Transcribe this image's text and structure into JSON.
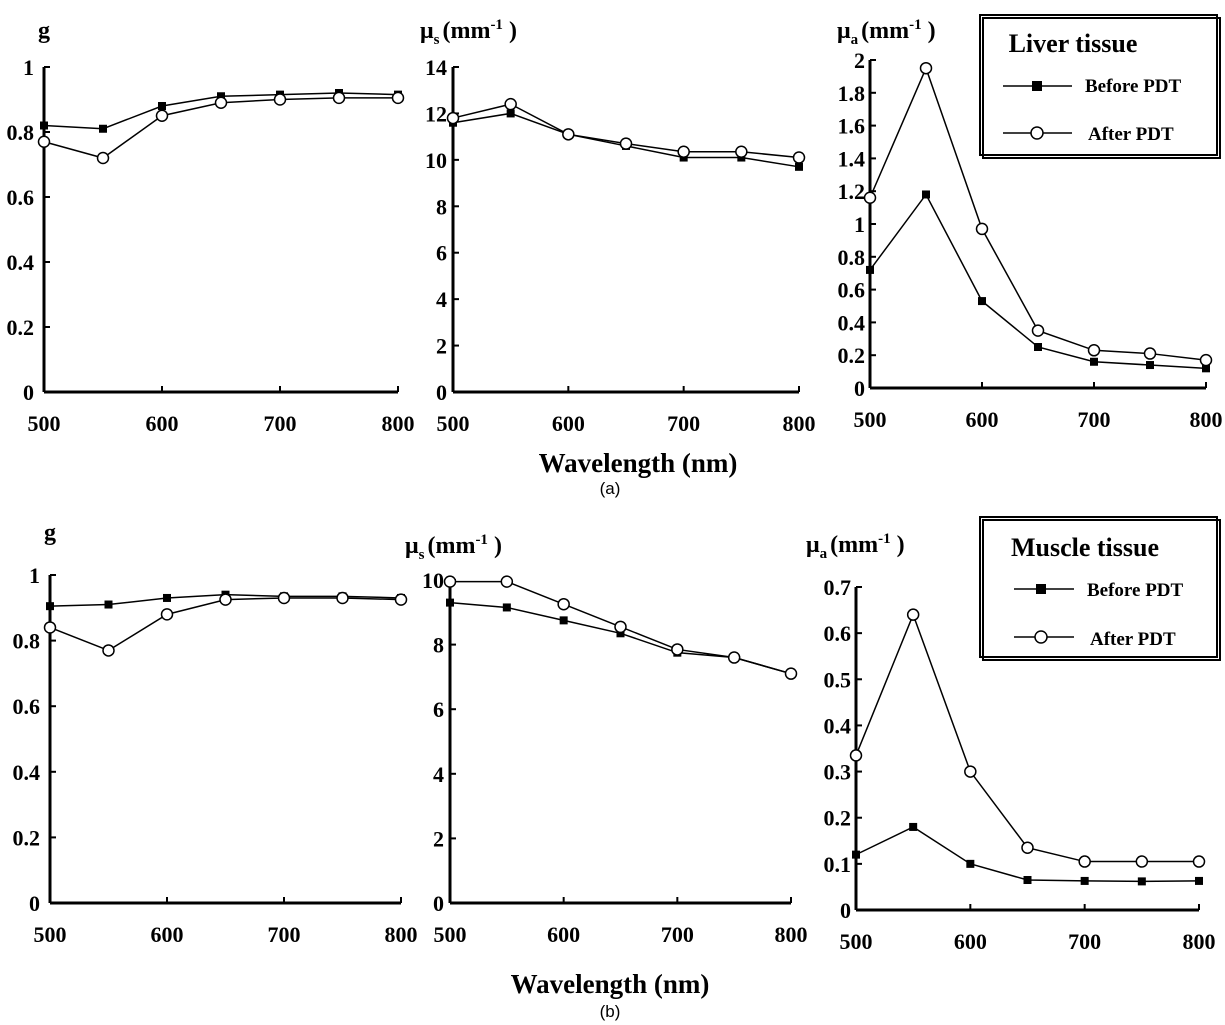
{
  "chart_data": [
    {
      "type": "line",
      "panel": "(a)",
      "tissue": "Liver tissue",
      "ylabel": "g",
      "ylim": [
        0,
        1
      ],
      "yticks": [
        "0",
        "0.2",
        "0.4",
        "0.6",
        "0.8",
        "1"
      ],
      "xlim": [
        500,
        800
      ],
      "xticks": [
        "500",
        "600",
        "700",
        "800"
      ],
      "x": [
        500,
        550,
        600,
        650,
        700,
        750,
        800
      ],
      "series": [
        {
          "name": "Before PDT",
          "marker": "filled-square",
          "values": [
            0.82,
            0.81,
            0.88,
            0.91,
            0.915,
            0.92,
            0.915
          ]
        },
        {
          "name": "After PDT",
          "marker": "open-circle",
          "values": [
            0.77,
            0.72,
            0.85,
            0.89,
            0.9,
            0.905,
            0.905
          ]
        }
      ]
    },
    {
      "type": "line",
      "panel": "(a)",
      "tissue": "Liver tissue",
      "ylabel": {
        "main": "μ",
        "sub": "s",
        "unit": "(mm",
        "sup": "-1",
        "close": " )"
      },
      "ylim": [
        0,
        14
      ],
      "yticks": [
        "0",
        "2",
        "4",
        "6",
        "8",
        "10",
        "12",
        "14"
      ],
      "xlim": [
        500,
        800
      ],
      "xticks": [
        "500",
        "600",
        "700",
        "800"
      ],
      "x": [
        500,
        550,
        600,
        650,
        700,
        750,
        800
      ],
      "series": [
        {
          "name": "Before PDT",
          "marker": "filled-square",
          "values": [
            11.6,
            12.0,
            11.1,
            10.6,
            10.1,
            10.1,
            9.7
          ]
        },
        {
          "name": "After PDT",
          "marker": "open-circle",
          "values": [
            11.8,
            12.4,
            11.1,
            10.7,
            10.35,
            10.35,
            10.1
          ]
        }
      ]
    },
    {
      "type": "line",
      "panel": "(a)",
      "tissue": "Liver tissue",
      "ylabel": {
        "main": "μ",
        "sub": "a",
        "unit": "(mm",
        "sup": "-1",
        "close": " )"
      },
      "ylim": [
        0,
        2
      ],
      "yticks": [
        "0",
        "0.2",
        "0.4",
        "0.6",
        "0.8",
        "1",
        "1.2",
        "1.4",
        "1.6",
        "1.8",
        "2"
      ],
      "xlim": [
        500,
        800
      ],
      "xticks": [
        "500",
        "600",
        "700",
        "800"
      ],
      "x": [
        500,
        550,
        600,
        650,
        700,
        750,
        800
      ],
      "series": [
        {
          "name": "Before PDT",
          "marker": "filled-square",
          "values": [
            0.72,
            1.18,
            0.53,
            0.25,
            0.16,
            0.14,
            0.12
          ]
        },
        {
          "name": "After PDT",
          "marker": "open-circle",
          "values": [
            1.16,
            1.95,
            0.97,
            0.35,
            0.23,
            0.21,
            0.17
          ]
        }
      ]
    },
    {
      "type": "line",
      "panel": "(b)",
      "tissue": "Muscle tissue",
      "ylabel": "g",
      "ylim": [
        0,
        1
      ],
      "yticks": [
        "0",
        "0.2",
        "0.4",
        "0.6",
        "0.8",
        "1"
      ],
      "xlim": [
        500,
        800
      ],
      "xticks": [
        "500",
        "600",
        "700",
        "800"
      ],
      "x": [
        500,
        550,
        600,
        650,
        700,
        750,
        800
      ],
      "series": [
        {
          "name": "Before PDT",
          "marker": "filled-square",
          "values": [
            0.905,
            0.91,
            0.93,
            0.94,
            0.935,
            0.935,
            0.93
          ]
        },
        {
          "name": "After PDT",
          "marker": "open-circle",
          "values": [
            0.84,
            0.77,
            0.88,
            0.925,
            0.93,
            0.93,
            0.925
          ]
        }
      ]
    },
    {
      "type": "line",
      "panel": "(b)",
      "tissue": "Muscle tissue",
      "ylabel": {
        "main": "μ",
        "sub": "s",
        "unit": "(mm",
        "sup": "-1",
        "close": " )"
      },
      "ylim": [
        0,
        10
      ],
      "yticks": [
        "0",
        "2",
        "4",
        "6",
        "8",
        "10"
      ],
      "xlim": [
        500,
        800
      ],
      "xticks": [
        "500",
        "600",
        "700",
        "800"
      ],
      "x": [
        500,
        550,
        600,
        650,
        700,
        750,
        800
      ],
      "series": [
        {
          "name": "Before PDT",
          "marker": "filled-square",
          "values": [
            9.3,
            9.15,
            8.75,
            8.35,
            7.75,
            7.6,
            7.1
          ]
        },
        {
          "name": "After PDT",
          "marker": "open-circle",
          "values": [
            9.95,
            9.95,
            9.25,
            8.55,
            7.85,
            7.6,
            7.1
          ]
        }
      ]
    },
    {
      "type": "line",
      "panel": "(b)",
      "tissue": "Muscle tissue",
      "ylabel": {
        "main": "μ",
        "sub": "a",
        "unit": "(mm",
        "sup": "-1",
        "close": " )"
      },
      "ylim": [
        0,
        0.7
      ],
      "yticks": [
        "0",
        "0.1",
        "0.2",
        "0.3",
        "0.4",
        "0.5",
        "0.6",
        "0.7"
      ],
      "xlim": [
        500,
        800
      ],
      "xticks": [
        "500",
        "600",
        "700",
        "800"
      ],
      "x": [
        500,
        550,
        600,
        650,
        700,
        750,
        800
      ],
      "series": [
        {
          "name": "Before PDT",
          "marker": "filled-square",
          "values": [
            0.12,
            0.18,
            0.1,
            0.065,
            0.063,
            0.062,
            0.063
          ]
        },
        {
          "name": "After PDT",
          "marker": "open-circle",
          "values": [
            0.335,
            0.64,
            0.3,
            0.135,
            0.105,
            0.105,
            0.105
          ]
        }
      ]
    }
  ],
  "figure": {
    "xlabel": "Wavelength (nm)",
    "panel_labels": [
      "(a)",
      "(b)"
    ]
  },
  "legends": [
    {
      "title": "Liver tissue",
      "items": [
        "Before PDT",
        "After PDT"
      ]
    },
    {
      "title": "Muscle tissue",
      "items": [
        "Before PDT",
        "After PDT"
      ]
    }
  ]
}
